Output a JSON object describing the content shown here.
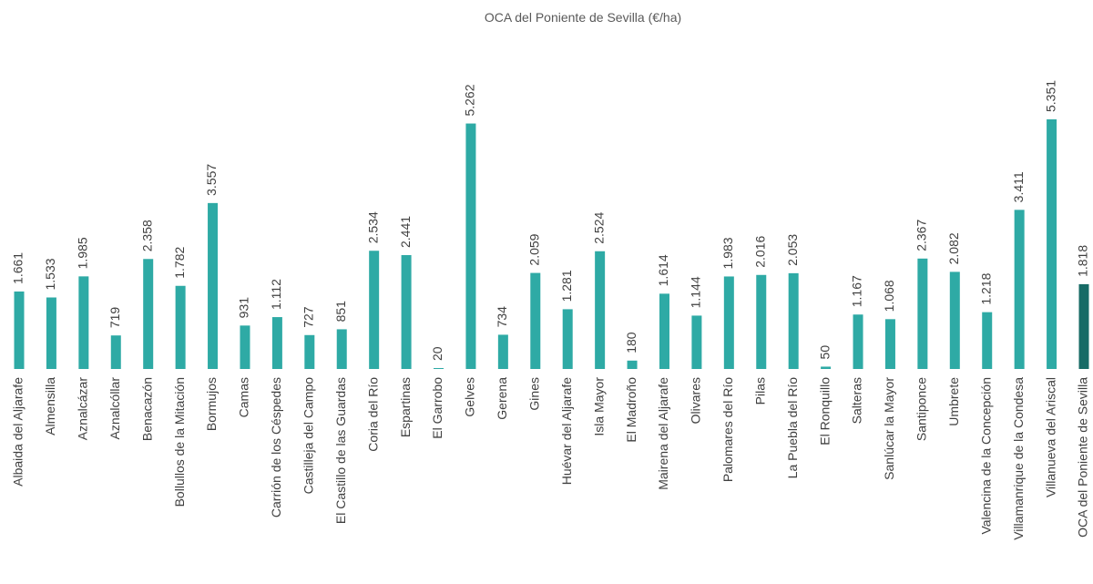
{
  "chart_data": {
    "type": "bar",
    "title": "OCA del Poniente de Sevilla (€/ha)",
    "categories": [
      "Albaida del Aljarafe",
      "Almensilla",
      "Aznalcázar",
      "Aznalcóllar",
      "Benacazón",
      "Bollullos de la Mitación",
      "Bormujos",
      "Camas",
      "Carrión de los Céspedes",
      "Castilleja del Campo",
      "El Castillo de las Guardas",
      "Coria del Río",
      "Espartinas",
      "El Garrobo",
      "Gelves",
      "Gerena",
      "Gines",
      "Huévar del Aljarafe",
      "Isla Mayor",
      "El Madroño",
      "Mairena del Aljarafe",
      "Olivares",
      "Palomares del Río",
      "Pilas",
      "La Puebla del Río",
      "El Ronquillo",
      "Salteras",
      "Sanlúcar la Mayor",
      "Santiponce",
      "Umbrete",
      "Valencina de la Concepción",
      "Villamanrique de la Condesa",
      "Villanueva del Ariscal",
      "OCA del Poniente de Sevilla"
    ],
    "values": [
      1661,
      1533,
      1985,
      719,
      2358,
      1782,
      3557,
      931,
      1112,
      727,
      851,
      2534,
      2441,
      20,
      5262,
      734,
      2059,
      1281,
      2524,
      180,
      1614,
      1144,
      1983,
      2016,
      2053,
      50,
      1167,
      1068,
      2367,
      2082,
      1218,
      3411,
      5351,
      1818
    ],
    "value_labels": [
      "1.661",
      "1.533",
      "1.985",
      "719",
      "2.358",
      "1.782",
      "3.557",
      "931",
      "1.112",
      "727",
      "851",
      "2.534",
      "2.441",
      "20",
      "5.262",
      "734",
      "2.059",
      "1.281",
      "2.524",
      "180",
      "1.614",
      "1.144",
      "1.983",
      "2.016",
      "2.053",
      "50",
      "1.167",
      "1.068",
      "2.367",
      "2.082",
      "1.218",
      "3.411",
      "5.351",
      "1.818"
    ],
    "colors": [
      "#2eaaa5",
      "#2eaaa5",
      "#2eaaa5",
      "#2eaaa5",
      "#2eaaa5",
      "#2eaaa5",
      "#2eaaa5",
      "#2eaaa5",
      "#2eaaa5",
      "#2eaaa5",
      "#2eaaa5",
      "#2eaaa5",
      "#2eaaa5",
      "#2eaaa5",
      "#2eaaa5",
      "#2eaaa5",
      "#2eaaa5",
      "#2eaaa5",
      "#2eaaa5",
      "#2eaaa5",
      "#2eaaa5",
      "#2eaaa5",
      "#2eaaa5",
      "#2eaaa5",
      "#2eaaa5",
      "#2eaaa5",
      "#2eaaa5",
      "#2eaaa5",
      "#2eaaa5",
      "#2eaaa5",
      "#2eaaa5",
      "#2eaaa5",
      "#2eaaa5",
      "#176b66"
    ]
  }
}
